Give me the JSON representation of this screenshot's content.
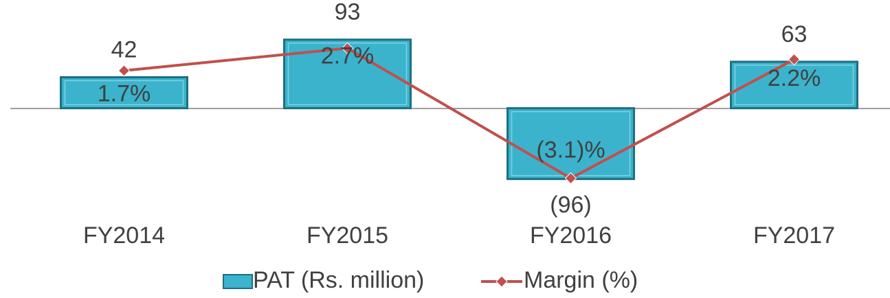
{
  "chart_data": {
    "type": "bar_line",
    "categories": [
      "FY2014",
      "FY2015",
      "FY2016",
      "FY2017"
    ],
    "series": [
      {
        "name": "PAT (Rs. million)",
        "type": "bar",
        "color": "#3bb3cc",
        "values": [
          42,
          93,
          -96,
          63
        ],
        "value_labels": [
          "42",
          "93",
          "(96)",
          "63"
        ]
      },
      {
        "name": "Margin (%)",
        "type": "line",
        "axis": "y2",
        "color": "#c0504d",
        "values": [
          1.7,
          2.7,
          -3.1,
          2.2
        ],
        "value_labels": [
          "1.7%",
          "2.7%",
          "(3.1)%",
          "2.2%"
        ]
      }
    ],
    "ylim": [
      -168,
      130
    ],
    "y2lim": [
      -5.5,
      4.3
    ],
    "legend": "bottom"
  }
}
